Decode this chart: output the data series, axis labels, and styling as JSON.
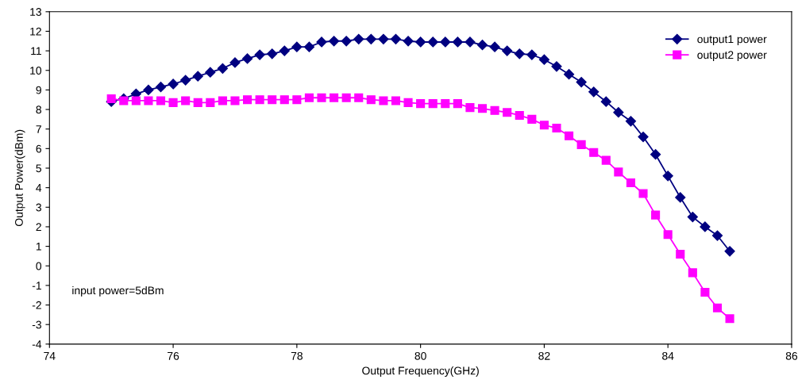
{
  "chart_data": {
    "type": "line",
    "xlabel": "Output Frequency(GHz)",
    "ylabel": "Output Power(dBm)",
    "x": [
      75,
      75.2,
      75.4,
      75.6,
      75.8,
      76,
      76.2,
      76.4,
      76.6,
      76.8,
      77,
      77.2,
      77.4,
      77.6,
      77.8,
      78,
      78.2,
      78.4,
      78.6,
      78.8,
      79,
      79.2,
      79.4,
      79.6,
      79.8,
      80,
      80.2,
      80.4,
      80.6,
      80.8,
      81,
      81.2,
      81.4,
      81.6,
      81.8,
      82,
      82.2,
      82.4,
      82.6,
      82.8,
      83,
      83.2,
      83.4,
      83.6,
      83.8,
      84,
      84.2,
      84.4,
      84.6,
      84.8,
      85
    ],
    "series": [
      {
        "name": "output1 power",
        "color": "#000080",
        "marker": "diamond",
        "values": [
          8.4,
          8.55,
          8.8,
          9.0,
          9.15,
          9.3,
          9.5,
          9.7,
          9.9,
          10.1,
          10.4,
          10.6,
          10.8,
          10.85,
          11.0,
          11.2,
          11.2,
          11.45,
          11.5,
          11.5,
          11.6,
          11.6,
          11.6,
          11.6,
          11.5,
          11.45,
          11.45,
          11.45,
          11.45,
          11.45,
          11.3,
          11.2,
          11.0,
          10.85,
          10.8,
          10.55,
          10.2,
          9.8,
          9.4,
          8.9,
          8.4,
          7.85,
          7.4,
          6.6,
          5.7,
          4.6,
          3.5,
          2.5,
          2.0,
          1.55,
          0.75
        ]
      },
      {
        "name": "output2 power",
        "color": "#ff00ff",
        "marker": "square",
        "values": [
          8.55,
          8.45,
          8.45,
          8.45,
          8.45,
          8.35,
          8.45,
          8.35,
          8.35,
          8.45,
          8.45,
          8.5,
          8.5,
          8.5,
          8.5,
          8.5,
          8.6,
          8.6,
          8.6,
          8.6,
          8.6,
          8.5,
          8.45,
          8.45,
          8.35,
          8.3,
          8.3,
          8.3,
          8.3,
          8.1,
          8.05,
          7.95,
          7.85,
          7.7,
          7.5,
          7.2,
          7.05,
          6.65,
          6.2,
          5.8,
          5.4,
          4.8,
          4.25,
          3.7,
          2.6,
          1.6,
          0.6,
          -0.35,
          -1.35,
          -2.15,
          -2.7
        ]
      }
    ],
    "xlim": [
      74,
      86
    ],
    "xticks": [
      74,
      76,
      78,
      80,
      82,
      84,
      86
    ],
    "ylim": [
      -4,
      13
    ],
    "yticks": [
      -4,
      -3,
      -2,
      -1,
      0,
      1,
      2,
      3,
      4,
      5,
      6,
      7,
      8,
      9,
      10,
      11,
      12,
      13
    ],
    "grid": false,
    "legend": "top right",
    "line_style": "solid",
    "annotations": [
      "input power=5dBm"
    ]
  }
}
